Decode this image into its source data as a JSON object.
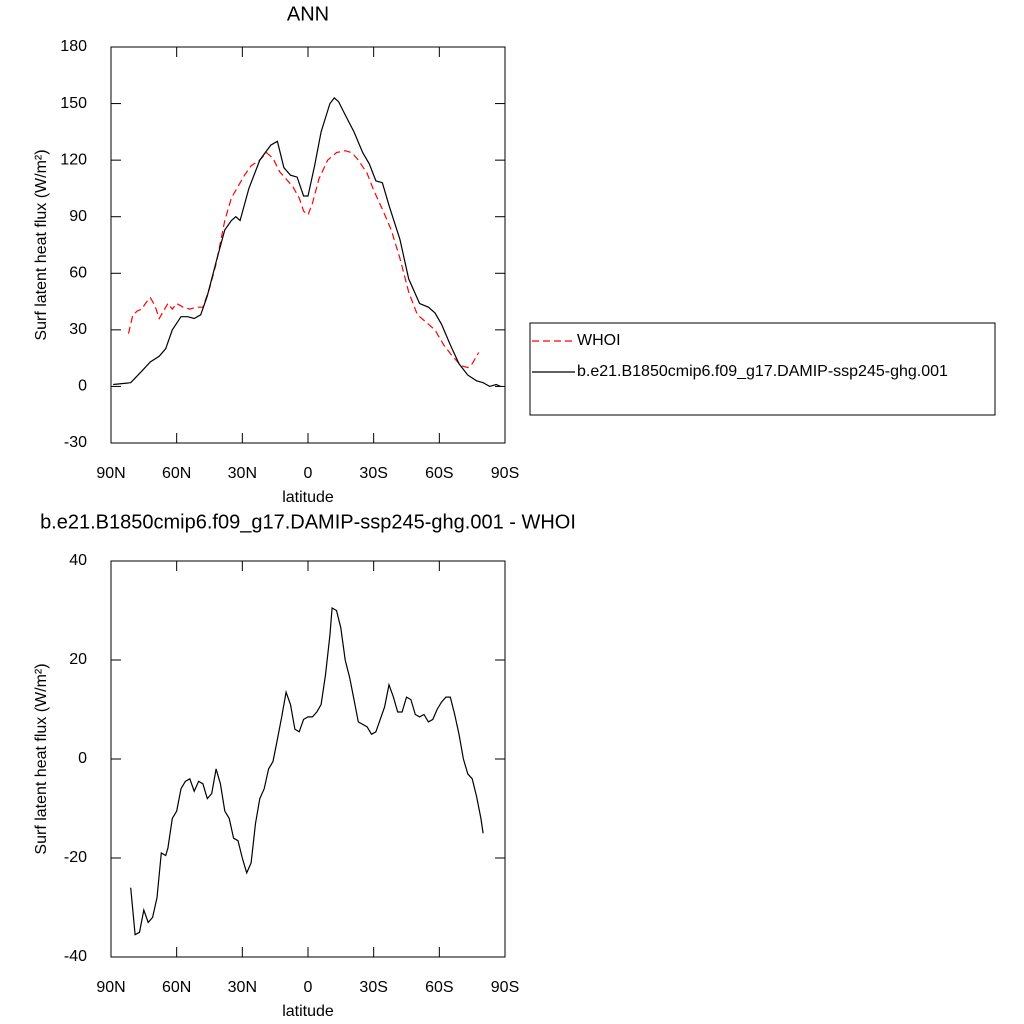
{
  "chart_data": [
    {
      "type": "line",
      "title": "ANN",
      "x_label": "latitude",
      "y_label": "Surf latent heat flux (W/m²)",
      "xlim": [
        90,
        -90
      ],
      "ylim": [
        -30,
        180
      ],
      "xticks": [
        {
          "value": 90,
          "label": "90N"
        },
        {
          "value": 60,
          "label": "60N"
        },
        {
          "value": 30,
          "label": "30N"
        },
        0,
        {
          "value": -30,
          "label": "30S"
        },
        {
          "value": -60,
          "label": "60S"
        },
        {
          "value": -90,
          "label": "90S"
        }
      ],
      "yticks": [
        -30,
        0,
        30,
        60,
        90,
        120,
        150,
        180
      ],
      "legend_position": "right",
      "series": [
        {
          "name": "WHOI",
          "color": "#ff0000",
          "dashed": true,
          "x": [
            82,
            80,
            78,
            76,
            73,
            72,
            70,
            68,
            66,
            64,
            62,
            60,
            57,
            54,
            51,
            48,
            45,
            42,
            38,
            35,
            32,
            29,
            26,
            22,
            19,
            16,
            13,
            10,
            7,
            4,
            2,
            0,
            -2,
            -5,
            -9,
            -13,
            -17,
            -20,
            -23,
            -27,
            -30,
            -34,
            -38,
            -42,
            -46,
            -50,
            -54,
            -58,
            -62,
            -66,
            -70,
            -73,
            -75,
            -78
          ],
          "values": [
            28,
            38,
            40,
            41,
            46,
            47,
            43,
            36,
            40,
            44,
            41,
            44,
            42,
            41,
            42,
            42,
            52,
            65,
            88,
            100,
            106,
            112,
            117,
            120,
            124,
            121,
            114,
            110,
            106,
            100,
            93,
            91,
            97,
            110,
            120,
            124,
            125,
            124,
            120,
            113,
            104,
            94,
            83,
            68,
            50,
            38,
            34,
            30,
            22,
            16,
            11,
            10,
            12,
            18
          ]
        },
        {
          "name": "b.e21.B1850cmip6.f09_g17.DAMIP-ssp245-ghg.001",
          "color": "#000000",
          "dashed": false,
          "x": [
            89,
            81,
            76,
            72,
            68,
            65,
            62,
            58,
            55,
            52,
            49,
            46,
            42,
            38,
            35,
            33,
            31,
            27,
            22,
            17,
            14,
            11,
            8,
            5,
            2,
            0,
            -3,
            -6,
            -10,
            -12,
            -14,
            -17,
            -21,
            -25,
            -28,
            -31,
            -34,
            -37,
            -42,
            -46,
            -51,
            -55,
            -58,
            -61,
            -65,
            -69,
            -73,
            -77,
            -80,
            -83,
            -86,
            -88
          ],
          "values": [
            1,
            2,
            8,
            13,
            16,
            20,
            30,
            37,
            37,
            36,
            38,
            48,
            66,
            83,
            88,
            90,
            88,
            105,
            120,
            128,
            130,
            116,
            112,
            111,
            101,
            101,
            117,
            135,
            150,
            153,
            151,
            144,
            135,
            124,
            118,
            109,
            108,
            96,
            78,
            57,
            44,
            42,
            39,
            33,
            22,
            12,
            6,
            3,
            2,
            0,
            1,
            0
          ]
        }
      ]
    },
    {
      "type": "line",
      "title": "b.e21.B1850cmip6.f09_g17.DAMIP-ssp245-ghg.001 - WHOI",
      "x_label": "latitude",
      "y_label": "Surf latent heat flux (W/m²)",
      "xlim": [
        90,
        -90
      ],
      "ylim": [
        -40,
        40
      ],
      "xticks": [
        {
          "value": 90,
          "label": "90N"
        },
        {
          "value": 60,
          "label": "60N"
        },
        {
          "value": 30,
          "label": "30N"
        },
        0,
        {
          "value": -30,
          "label": "30S"
        },
        {
          "value": -60,
          "label": "60S"
        },
        {
          "value": -90,
          "label": "90S"
        }
      ],
      "yticks": [
        -40,
        -20,
        0,
        20,
        40
      ],
      "series": [
        {
          "color": "#000000",
          "dashed": false,
          "x": [
            81,
            79,
            77,
            75,
            73,
            71,
            69,
            67,
            65,
            64,
            62,
            60,
            58,
            56,
            54,
            52,
            50,
            48,
            46,
            44,
            42,
            40,
            38,
            36,
            34,
            32,
            30,
            28,
            26,
            24,
            22,
            20,
            18,
            16,
            14,
            12,
            10,
            8,
            6,
            4,
            2,
            0,
            -2,
            -4,
            -6,
            -8,
            -10,
            -11,
            -13,
            -15,
            -17,
            -19,
            -21,
            -23,
            -27,
            -29,
            -31,
            -33,
            -35,
            -37,
            -39,
            -41,
            -43,
            -45,
            -47,
            -49,
            -51,
            -53,
            -55,
            -57,
            -59,
            -61,
            -63,
            -65,
            -67,
            -69,
            -71,
            -73,
            -75,
            -77,
            -79,
            -80
          ],
          "values": [
            -26,
            -35.5,
            -35,
            -30.5,
            -33,
            -32,
            -28,
            -19,
            -19.5,
            -18,
            -12,
            -10.5,
            -6,
            -4.5,
            -4,
            -6.5,
            -4.5,
            -5,
            -8,
            -7,
            -2,
            -5,
            -10.5,
            -12,
            -16,
            -16.5,
            -20,
            -23,
            -21,
            -13,
            -8,
            -6,
            -2,
            -0.5,
            4,
            8.5,
            13.5,
            11,
            6,
            5.5,
            8,
            8.5,
            8.5,
            9.5,
            11,
            17,
            25,
            30.5,
            30,
            26.5,
            20,
            16.5,
            12,
            7.5,
            6.5,
            5,
            5.5,
            8,
            10.5,
            15,
            12.5,
            9.5,
            9.5,
            12.5,
            12,
            9,
            8.5,
            9,
            7.5,
            8,
            10,
            11.5,
            12.5,
            12.5,
            9,
            5,
            0,
            -3,
            -4,
            -7.5,
            -12,
            -15
          ]
        }
      ]
    }
  ]
}
